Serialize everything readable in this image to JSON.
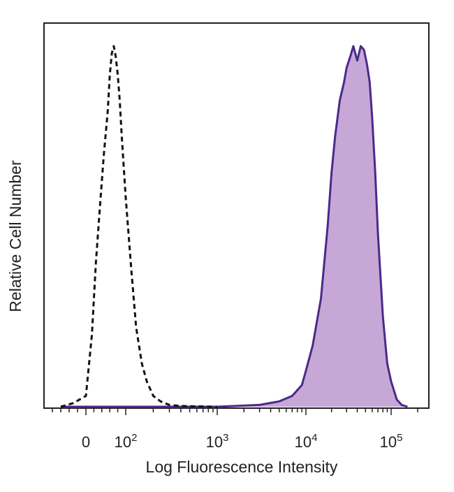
{
  "chart_data": {
    "type": "area",
    "title": "",
    "xlabel": "Log Fluorescence Intensity",
    "ylabel": "Relative Cell Number",
    "x_scale": "biexponential (linear near 0, log above 10^2)",
    "xlim": [
      -100,
      200000
    ],
    "ylim": [
      0,
      100
    ],
    "grid": false,
    "legend": "none",
    "x_ticks": [
      {
        "value": 0,
        "base": "0",
        "exp": ""
      },
      {
        "value": 100,
        "base": "10",
        "exp": "2"
      },
      {
        "value": 1000,
        "base": "10",
        "exp": "3"
      },
      {
        "value": 10000,
        "base": "10",
        "exp": "4"
      },
      {
        "value": 100000,
        "base": "10",
        "exp": "5"
      }
    ],
    "series": [
      {
        "style": "dashed outline, unfilled",
        "color": "#111111",
        "x": [
          -60,
          -30,
          0,
          15,
          25,
          35,
          45,
          55,
          60,
          65,
          70,
          75,
          80,
          85,
          90,
          100,
          115,
          130,
          150,
          170,
          200,
          240,
          300,
          400,
          600,
          1000
        ],
        "y": [
          0,
          1,
          3,
          20,
          40,
          55,
          70,
          82,
          92,
          98,
          100,
          97,
          92,
          85,
          75,
          58,
          38,
          22,
          12,
          7,
          3,
          1.5,
          0.5,
          0.2,
          0.1,
          0
        ]
      },
      {
        "style": "solid outline, filled",
        "color": "#4a2a8a",
        "fill": "#c7a7d5",
        "x": [
          -60,
          1000,
          3000,
          5000,
          7000,
          9000,
          10000,
          12000,
          15000,
          18000,
          20000,
          22000,
          25000,
          28000,
          30000,
          33000,
          36000,
          40000,
          44000,
          48000,
          52000,
          56000,
          60000,
          65000,
          70000,
          80000,
          90000,
          100000,
          115000,
          130000,
          150000
        ],
        "y": [
          0,
          0,
          0.5,
          1.5,
          3,
          6,
          10,
          17,
          30,
          50,
          65,
          75,
          85,
          90,
          94,
          97,
          100,
          96,
          100,
          99,
          95,
          90,
          80,
          65,
          48,
          25,
          12,
          7,
          2,
          0.5,
          0
        ]
      }
    ]
  },
  "colors": {
    "outline_series": "#111111",
    "filled_series_line": "#4a2a8a",
    "filled_series_fill": "#c7a7d5"
  }
}
